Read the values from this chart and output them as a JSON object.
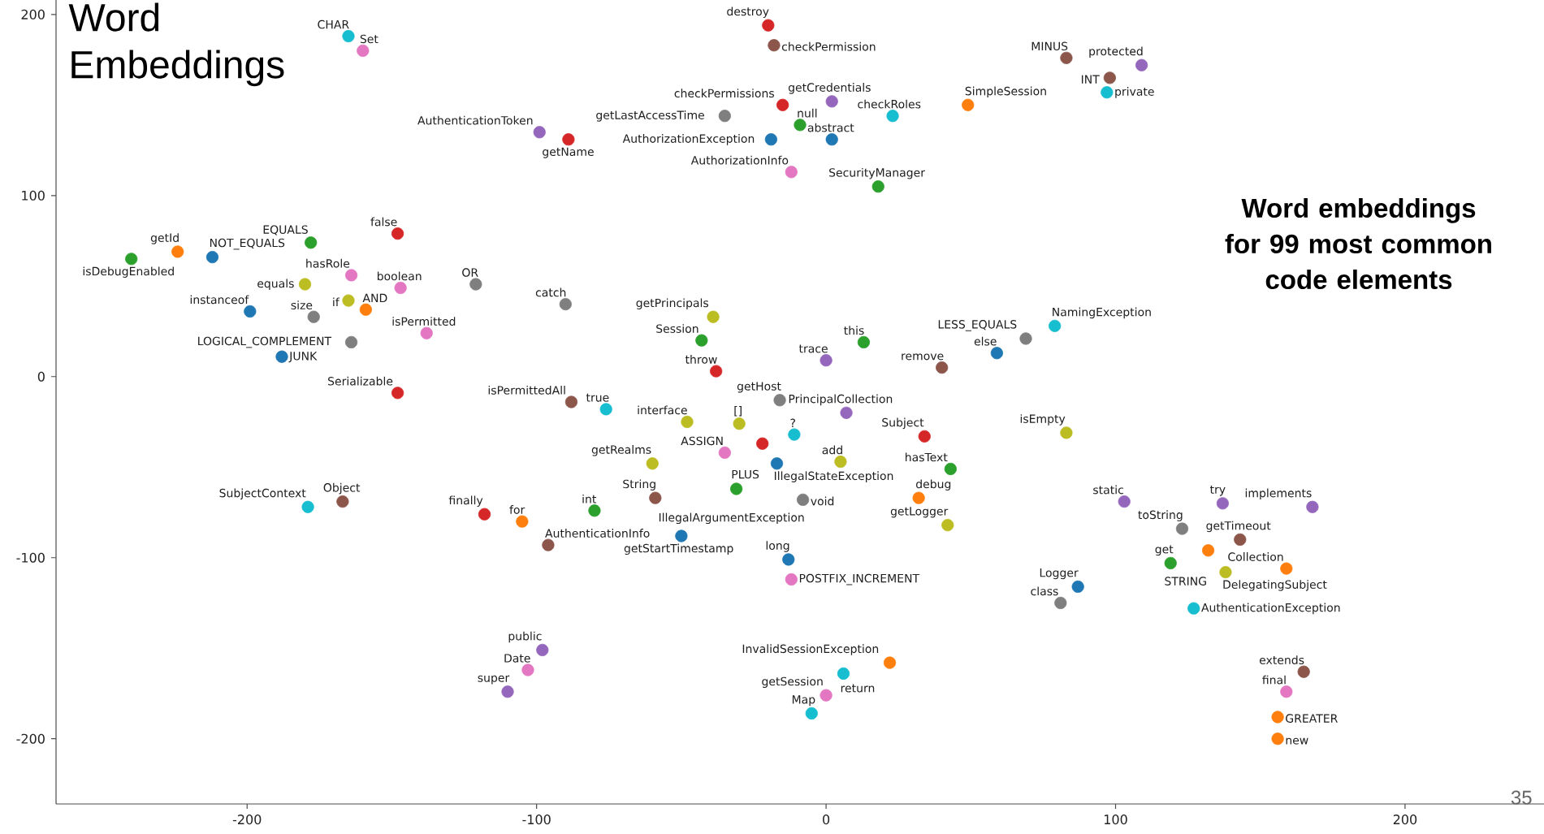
{
  "chart_data": {
    "type": "scatter",
    "title": "Word Embeddings",
    "subtitle": "Word embeddings for 99 most common code elements",
    "xlim": [
      -266,
      248
    ],
    "ylim": [
      -236,
      208
    ],
    "xticks": [
      -200,
      -100,
      0,
      100,
      200
    ],
    "yticks": [
      -200,
      -100,
      0,
      100,
      200
    ],
    "x": [
      -240,
      -224,
      -212,
      -178,
      -148,
      -164,
      -180,
      -147,
      -121,
      -165,
      -159,
      -199,
      -177,
      -138,
      -164,
      -188,
      -148,
      -165,
      -160,
      -99,
      -89,
      -90,
      -20,
      -18,
      -15,
      2,
      23,
      49,
      -35,
      -9,
      -19,
      2,
      -12,
      18,
      83,
      109,
      98,
      97,
      -39,
      -43,
      13,
      0,
      40,
      79,
      69,
      59,
      -38,
      -88,
      -76,
      -48,
      -16,
      7,
      -30,
      -11,
      -22,
      -35,
      -17,
      -60,
      5,
      34,
      83,
      43,
      -31,
      -59,
      -8,
      -80,
      32,
      42,
      -118,
      -105,
      -96,
      -50,
      -13,
      -12,
      -179,
      -167,
      103,
      137,
      168,
      123,
      143,
      132,
      119,
      138,
      159,
      87,
      81,
      127,
      -98,
      -103,
      -110,
      22,
      6,
      0,
      -5,
      165,
      159,
      156,
      156
    ],
    "values": [
      65,
      69,
      66,
      74,
      79,
      56,
      51,
      49,
      51,
      42,
      37,
      36,
      33,
      24,
      19,
      11,
      -9,
      188,
      180,
      135,
      131,
      40,
      194,
      183,
      150,
      152,
      144,
      150,
      144,
      139,
      131,
      131,
      113,
      105,
      176,
      172,
      165,
      157,
      33,
      20,
      19,
      9,
      5,
      28,
      21,
      13,
      3,
      -14,
      -18,
      -25,
      -13,
      -20,
      -26,
      -32,
      -37,
      -42,
      -48,
      -48,
      -47,
      -33,
      -31,
      -51,
      -62,
      -67,
      -68,
      -74,
      -67,
      -82,
      -76,
      -80,
      -93,
      -88,
      -101,
      -112,
      -72,
      -69,
      -69,
      -70,
      -72,
      -84,
      -90,
      -96,
      -103,
      -108,
      -106,
      -116,
      -125,
      -128,
      -151,
      -162,
      -174,
      -158,
      -164,
      -176,
      -186,
      -163,
      -174,
      -188,
      -200
    ],
    "colors": [
      "#2ca02c",
      "#ff7f0e",
      "#1f77b4",
      "#2ca02c",
      "#d62728",
      "#e377c2",
      "#bcbd22",
      "#e377c2",
      "#7f7f7f",
      "#bcbd22",
      "#ff7f0e",
      "#1f77b4",
      "#7f7f7f",
      "#e377c2",
      "#7f7f7f",
      "#1f77b4",
      "#d62728",
      "#17becf",
      "#e377c2",
      "#9467bd",
      "#d62728",
      "#7f7f7f",
      "#d62728",
      "#8c564b",
      "#d62728",
      "#9467bd",
      "#17becf",
      "#ff7f0e",
      "#7f7f7f",
      "#2ca02c",
      "#1f77b4",
      "#1f77b4",
      "#e377c2",
      "#2ca02c",
      "#8c564b",
      "#9467bd",
      "#8c564b",
      "#17becf",
      "#bcbd22",
      "#2ca02c",
      "#2ca02c",
      "#9467bd",
      "#8c564b",
      "#17becf",
      "#7f7f7f",
      "#1f77b4",
      "#d62728",
      "#8c564b",
      "#17becf",
      "#bcbd22",
      "#7f7f7f",
      "#9467bd",
      "#bcbd22",
      "#17becf",
      "#d62728",
      "#e377c2",
      "#1f77b4",
      "#bcbd22",
      "#bcbd22",
      "#d62728",
      "#bcbd22",
      "#2ca02c",
      "#2ca02c",
      "#8c564b",
      "#7f7f7f",
      "#2ca02c",
      "#ff7f0e",
      "#bcbd22",
      "#d62728",
      "#ff7f0e",
      "#8c564b",
      "#1f77b4",
      "#1f77b4",
      "#e377c2",
      "#17becf",
      "#8c564b",
      "#9467bd",
      "#9467bd",
      "#9467bd",
      "#7f7f7f",
      "#8c564b",
      "#ff7f0e",
      "#2ca02c",
      "#bcbd22",
      "#ff7f0e",
      "#1f77b4",
      "#7f7f7f",
      "#17becf",
      "#9467bd",
      "#e377c2",
      "#9467bd",
      "#ff7f0e",
      "#17becf",
      "#e377c2",
      "#17becf",
      "#8c564b",
      "#e377c2",
      "#ff7f0e",
      "#ff7f0e"
    ],
    "annotations": [
      {
        "text": "isDebugEnabled",
        "x": -240,
        "y": 65
      },
      {
        "text": "getId",
        "x": -224,
        "y": 69
      },
      {
        "text": "NOT_EQUALS",
        "x": -212,
        "y": 66
      },
      {
        "text": "EQUALS",
        "x": -178,
        "y": 74
      },
      {
        "text": "false",
        "x": -148,
        "y": 79
      },
      {
        "text": "hasRole",
        "x": -164,
        "y": 56
      },
      {
        "text": "equals",
        "x": -180,
        "y": 51
      },
      {
        "text": "boolean",
        "x": -147,
        "y": 49
      },
      {
        "text": "OR",
        "x": -121,
        "y": 51
      },
      {
        "text": "if",
        "x": -165,
        "y": 42
      },
      {
        "text": "AND",
        "x": -159,
        "y": 37
      },
      {
        "text": "instanceof",
        "x": -199,
        "y": 36
      },
      {
        "text": "size",
        "x": -177,
        "y": 33
      },
      {
        "text": "isPermitted",
        "x": -138,
        "y": 24
      },
      {
        "text": "LOGICAL_COMPLEMENT",
        "x": -164,
        "y": 19
      },
      {
        "text": "JUNK",
        "x": -188,
        "y": 11
      },
      {
        "text": "Serializable",
        "x": -148,
        "y": -9
      },
      {
        "text": "CHAR",
        "x": -165,
        "y": 188
      },
      {
        "text": "Set",
        "x": -160,
        "y": 180
      },
      {
        "text": "AuthenticationToken",
        "x": -99,
        "y": 135
      },
      {
        "text": "getName",
        "x": -89,
        "y": 131
      },
      {
        "text": "catch",
        "x": -90,
        "y": 40
      },
      {
        "text": "destroy",
        "x": -20,
        "y": 194
      },
      {
        "text": "checkPermission",
        "x": -18,
        "y": 183
      },
      {
        "text": "checkPermissions",
        "x": -15,
        "y": 150
      },
      {
        "text": "getCredentials",
        "x": 2,
        "y": 152
      },
      {
        "text": "checkRoles",
        "x": 23,
        "y": 144
      },
      {
        "text": "SimpleSession",
        "x": 49,
        "y": 150
      },
      {
        "text": "getLastAccessTime",
        "x": -35,
        "y": 144
      },
      {
        "text": "null",
        "x": -9,
        "y": 139
      },
      {
        "text": "AuthorizationException",
        "x": -19,
        "y": 131
      },
      {
        "text": "abstract",
        "x": 2,
        "y": 131
      },
      {
        "text": "AuthorizationInfo",
        "x": -12,
        "y": 113
      },
      {
        "text": "SecurityManager",
        "x": 18,
        "y": 105
      },
      {
        "text": "MINUS",
        "x": 83,
        "y": 176
      },
      {
        "text": "protected",
        "x": 109,
        "y": 172
      },
      {
        "text": "INT",
        "x": 98,
        "y": 165
      },
      {
        "text": "private",
        "x": 97,
        "y": 157
      },
      {
        "text": "getPrincipals",
        "x": -39,
        "y": 33
      },
      {
        "text": "Session",
        "x": -43,
        "y": 20
      },
      {
        "text": "this",
        "x": 13,
        "y": 19
      },
      {
        "text": "trace",
        "x": 0,
        "y": 9
      },
      {
        "text": "remove",
        "x": 40,
        "y": 5
      },
      {
        "text": "NamingException",
        "x": 79,
        "y": 28
      },
      {
        "text": "LESS_EQUALS",
        "x": 69,
        "y": 21
      },
      {
        "text": "else",
        "x": 59,
        "y": 13
      },
      {
        "text": "throw",
        "x": -38,
        "y": 3
      },
      {
        "text": "isPermittedAll",
        "x": -88,
        "y": -14
      },
      {
        "text": "true",
        "x": -76,
        "y": -18
      },
      {
        "text": "interface",
        "x": -48,
        "y": -25
      },
      {
        "text": "getHost",
        "x": -16,
        "y": -13
      },
      {
        "text": "PrincipalCollection",
        "x": 7,
        "y": -20
      },
      {
        "text": "[]",
        "x": -30,
        "y": -26
      },
      {
        "text": "?",
        "x": -11,
        "y": -32
      },
      {
        "text": "PLUS",
        "x": -22,
        "y": -37
      },
      {
        "text": "ASSIGN",
        "x": -35,
        "y": -42
      },
      {
        "text": "IllegalStateException",
        "x": -17,
        "y": -48
      },
      {
        "text": "getRealms",
        "x": -60,
        "y": -48
      },
      {
        "text": "add",
        "x": 5,
        "y": -47
      },
      {
        "text": "Subject",
        "x": 34,
        "y": -33
      },
      {
        "text": "isEmpty",
        "x": 83,
        "y": -31
      },
      {
        "text": "hasText",
        "x": 43,
        "y": -51
      },
      {
        "text": "IllegalArgumentException",
        "x": -31,
        "y": -62
      },
      {
        "text": "String",
        "x": -59,
        "y": -67
      },
      {
        "text": "void",
        "x": -8,
        "y": -68
      },
      {
        "text": "int",
        "x": -80,
        "y": -74
      },
      {
        "text": "debug",
        "x": 32,
        "y": -67
      },
      {
        "text": "getLogger",
        "x": 42,
        "y": -82
      },
      {
        "text": "finally",
        "x": -118,
        "y": -76
      },
      {
        "text": "for",
        "x": -105,
        "y": -80
      },
      {
        "text": "AuthenticationInfo",
        "x": -96,
        "y": -93
      },
      {
        "text": "getStartTimestamp",
        "x": -50,
        "y": -88
      },
      {
        "text": "long",
        "x": -13,
        "y": -101
      },
      {
        "text": "POSTFIX_INCREMENT",
        "x": -12,
        "y": -112
      },
      {
        "text": "SubjectContext",
        "x": -179,
        "y": -72
      },
      {
        "text": "Object",
        "x": -167,
        "y": -69
      },
      {
        "text": "static",
        "x": 103,
        "y": -69
      },
      {
        "text": "try",
        "x": 137,
        "y": -70
      },
      {
        "text": "implements",
        "x": 168,
        "y": -72
      },
      {
        "text": "toString",
        "x": 123,
        "y": -84
      },
      {
        "text": "getTimeout",
        "x": 143,
        "y": -90
      },
      {
        "text": "STRING",
        "x": 132,
        "y": -96
      },
      {
        "text": "get",
        "x": 119,
        "y": -103
      },
      {
        "text": "DelegatingSubject",
        "x": 138,
        "y": -108
      },
      {
        "text": "Collection",
        "x": 159,
        "y": -106
      },
      {
        "text": "Logger",
        "x": 87,
        "y": -116
      },
      {
        "text": "class",
        "x": 81,
        "y": -125
      },
      {
        "text": "AuthenticationException",
        "x": 127,
        "y": -128
      },
      {
        "text": "public",
        "x": -98,
        "y": -151
      },
      {
        "text": "Date",
        "x": -103,
        "y": -162
      },
      {
        "text": "super",
        "x": -110,
        "y": -174
      },
      {
        "text": "InvalidSessionException",
        "x": 22,
        "y": -158
      },
      {
        "text": "return",
        "x": 6,
        "y": -164
      },
      {
        "text": "getSession",
        "x": 0,
        "y": -176
      },
      {
        "text": "Map",
        "x": -5,
        "y": -186
      },
      {
        "text": "extends",
        "x": 165,
        "y": -163
      },
      {
        "text": "final",
        "x": 159,
        "y": -174
      },
      {
        "text": "GREATER",
        "x": 156,
        "y": -188
      },
      {
        "text": "new",
        "x": 156,
        "y": -200
      },
      "35"
    ]
  }
}
